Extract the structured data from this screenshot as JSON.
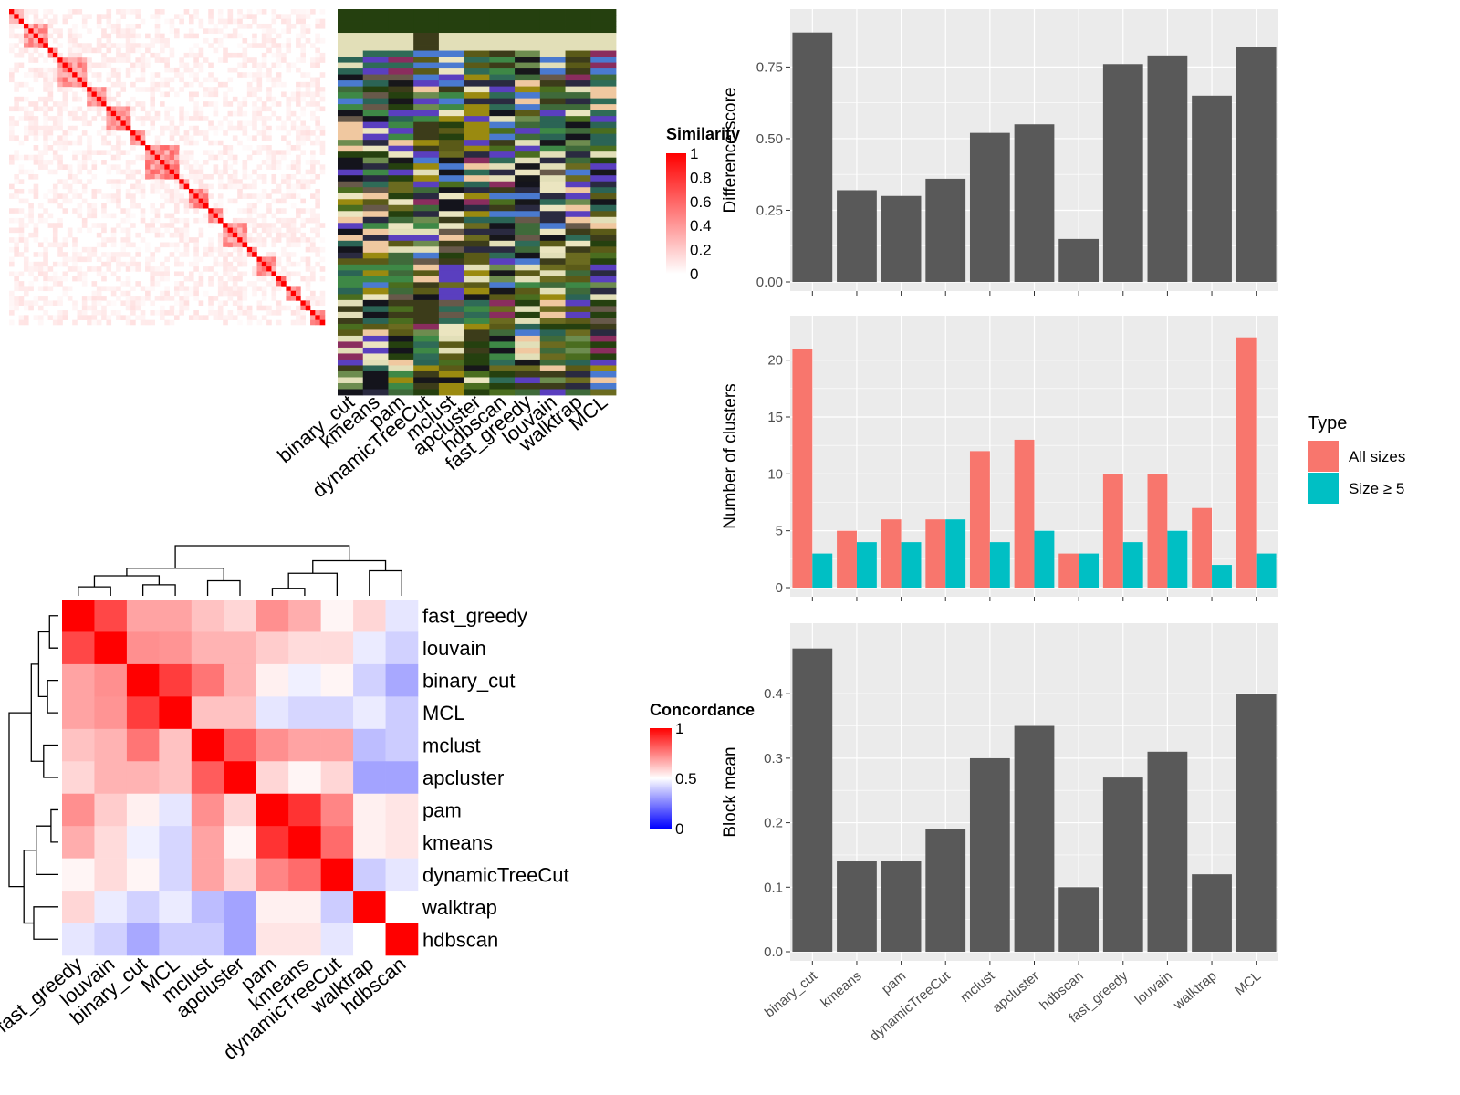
{
  "colors": {
    "bar_fill": "#595959",
    "panel_bg": "#ebebeb",
    "grid": "#ffffff",
    "all_sizes": "#f8766d",
    "size_ge5": "#00bfc4",
    "heat_high": "#ff0000",
    "heat_mid": "#ffffff",
    "heat_low": "#0000ff"
  },
  "chart_data": [
    {
      "id": "similarity-heatmap",
      "type": "heatmap",
      "legend_title": "Similarity",
      "legend_ticks": [
        "1",
        "0.8",
        "0.6",
        "0.4",
        "0.2",
        "0"
      ],
      "column_labels": [
        "binary_cut",
        "kmeans",
        "pam",
        "dynamicTreeCut",
        "mclust",
        "apcluster",
        "hdbscan",
        "fast_greedy",
        "louvain",
        "walktrap",
        "MCL"
      ],
      "blocks": [
        3,
        5,
        2,
        6,
        4,
        5,
        3,
        7,
        2,
        4,
        3,
        5,
        2,
        4,
        2,
        3,
        2,
        3
      ],
      "annotation_colors": [
        "#25400f",
        "#e2dfb8",
        "#3c3c1a",
        "#2b6455",
        "#4a6d1f",
        "#2f6b57",
        "#6b6b20",
        "#9a8a10",
        "#3f6a3a",
        "#3e8846",
        "#8a2d5e",
        "#14141c",
        "#5a5a18",
        "#17171a",
        "#67594a",
        "#4a7ad0",
        "#e2dfb8",
        "#2a2a40",
        "#6d8c4f",
        "#f0c8a0",
        "#5a3fbf",
        "#ebe5c0"
      ]
    },
    {
      "id": "concordance-heatmap",
      "type": "heatmap",
      "legend_title": "Concordance",
      "legend_ticks": [
        "1",
        "0.5",
        "0"
      ],
      "row_labels": [
        "fast_greedy",
        "louvain",
        "binary_cut",
        "MCL",
        "mclust",
        "apcluster",
        "pam",
        "kmeans",
        "dynamicTreeCut",
        "walktrap",
        "hdbscan"
      ],
      "col_labels": [
        "fast_greedy",
        "louvain",
        "binary_cut",
        "MCL",
        "mclust",
        "apcluster",
        "pam",
        "kmeans",
        "dynamicTreeCut",
        "walktrap",
        "hdbscan"
      ],
      "values": [
        [
          1.0,
          0.86,
          0.68,
          0.68,
          0.62,
          0.58,
          0.72,
          0.66,
          0.52,
          0.58,
          0.45
        ],
        [
          0.86,
          1.0,
          0.72,
          0.71,
          0.65,
          0.65,
          0.6,
          0.57,
          0.57,
          0.46,
          0.41
        ],
        [
          0.68,
          0.72,
          1.0,
          0.88,
          0.77,
          0.65,
          0.53,
          0.47,
          0.52,
          0.41,
          0.33
        ],
        [
          0.68,
          0.71,
          0.88,
          1.0,
          0.62,
          0.62,
          0.45,
          0.42,
          0.42,
          0.46,
          0.4
        ],
        [
          0.62,
          0.65,
          0.77,
          0.62,
          1.0,
          0.82,
          0.72,
          0.68,
          0.68,
          0.37,
          0.4
        ],
        [
          0.58,
          0.65,
          0.65,
          0.62,
          0.82,
          1.0,
          0.58,
          0.52,
          0.58,
          0.32,
          0.32
        ],
        [
          0.72,
          0.6,
          0.53,
          0.45,
          0.72,
          0.58,
          1.0,
          0.9,
          0.74,
          0.53,
          0.55
        ],
        [
          0.66,
          0.57,
          0.47,
          0.42,
          0.68,
          0.52,
          0.9,
          1.0,
          0.79,
          0.53,
          0.55
        ],
        [
          0.52,
          0.57,
          0.52,
          0.42,
          0.68,
          0.58,
          0.74,
          0.79,
          1.0,
          0.4,
          0.45
        ],
        [
          0.58,
          0.46,
          0.41,
          0.46,
          0.37,
          0.32,
          0.53,
          0.53,
          0.4,
          1.0,
          0.5
        ],
        [
          0.45,
          0.41,
          0.33,
          0.4,
          0.4,
          0.32,
          0.55,
          0.55,
          0.45,
          0.5,
          1.0
        ]
      ]
    },
    {
      "id": "difference-score",
      "type": "bar",
      "categories": [
        "binary_cut",
        "kmeans",
        "pam",
        "dynamicTreeCut",
        "mclust",
        "apcluster",
        "hdbscan",
        "fast_greedy",
        "louvain",
        "walktrap",
        "MCL"
      ],
      "values": [
        0.87,
        0.32,
        0.3,
        0.36,
        0.52,
        0.55,
        0.15,
        0.76,
        0.79,
        0.65,
        0.82
      ],
      "ylabel": "Difference score",
      "yticks": [
        0,
        0.25,
        0.5,
        0.75
      ],
      "ytick_labels": [
        "0.00",
        "0.25",
        "0.50",
        "0.75"
      ],
      "ylim": [
        0,
        0.92
      ]
    },
    {
      "id": "number-of-clusters",
      "type": "bar",
      "categories": [
        "binary_cut",
        "kmeans",
        "pam",
        "dynamicTreeCut",
        "mclust",
        "apcluster",
        "hdbscan",
        "fast_greedy",
        "louvain",
        "walktrap",
        "MCL"
      ],
      "series": [
        {
          "name": "All sizes",
          "values": [
            21,
            5,
            6,
            6,
            12,
            13,
            3,
            10,
            10,
            7,
            22
          ]
        },
        {
          "name": "Size ≥ 5",
          "values": [
            3,
            4,
            4,
            6,
            4,
            5,
            3,
            4,
            5,
            2,
            3
          ]
        }
      ],
      "ylabel": "Number of clusters",
      "yticks": [
        0,
        5,
        10,
        15,
        20
      ],
      "ytick_labels": [
        "0",
        "5",
        "10",
        "15",
        "20"
      ],
      "ylim": [
        0,
        23.1
      ],
      "legend_title": "Type"
    },
    {
      "id": "block-mean",
      "type": "bar",
      "categories": [
        "binary_cut",
        "kmeans",
        "pam",
        "dynamicTreeCut",
        "mclust",
        "apcluster",
        "hdbscan",
        "fast_greedy",
        "louvain",
        "walktrap",
        "MCL"
      ],
      "values": [
        0.47,
        0.14,
        0.14,
        0.19,
        0.3,
        0.35,
        0.1,
        0.27,
        0.31,
        0.12,
        0.4
      ],
      "ylabel": "Block mean",
      "yticks": [
        0,
        0.1,
        0.2,
        0.3,
        0.4
      ],
      "ytick_labels": [
        "0.0",
        "0.1",
        "0.2",
        "0.3",
        "0.4"
      ],
      "ylim": [
        0,
        0.495
      ]
    }
  ]
}
